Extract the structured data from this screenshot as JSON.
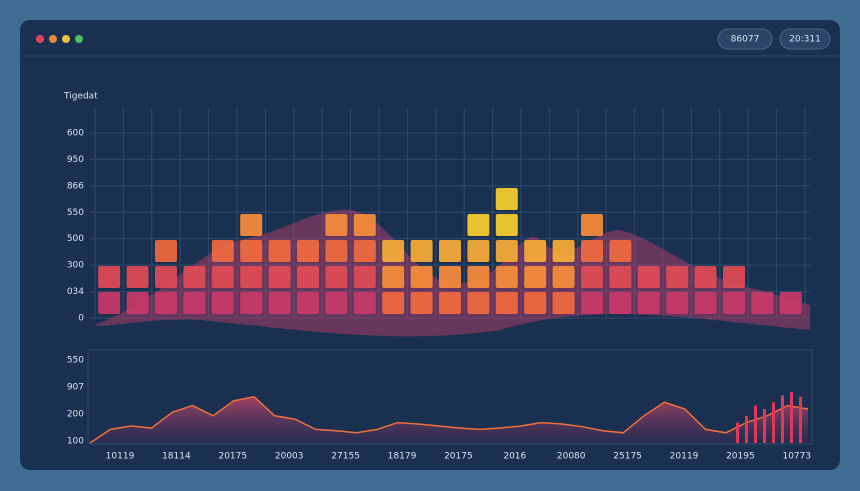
{
  "window": {
    "badges": [
      "86077",
      "20:311"
    ]
  },
  "top_chart": {
    "title": "Tigedat",
    "y_labels": [
      "600",
      "950",
      "866",
      "550",
      "500",
      "300",
      "034",
      "0"
    ],
    "column_heights": [
      2,
      2,
      3,
      2,
      3,
      4,
      3,
      3,
      4,
      4,
      3,
      3,
      3,
      4,
      5,
      3,
      3,
      4,
      3,
      2,
      2,
      2,
      2,
      1,
      1
    ]
  },
  "bottom_chart": {
    "y_labels": [
      "550",
      "907",
      "200",
      "100"
    ],
    "x_labels": [
      "10119",
      "18114",
      "20175",
      "20003",
      "27155",
      "18179",
      "20175",
      "2016",
      "20080",
      "25175",
      "20119",
      "20195",
      "10773"
    ],
    "line": [
      0,
      20,
      25,
      22,
      45,
      55,
      40,
      62,
      68,
      40,
      35,
      20,
      18,
      15,
      20,
      30,
      28,
      25,
      22,
      20,
      22,
      25,
      30,
      28,
      24,
      18,
      15,
      40,
      60,
      50,
      20,
      15,
      30,
      40,
      55,
      50
    ],
    "bars": [
      30,
      40,
      55,
      50,
      60,
      70,
      75,
      68
    ]
  }
}
